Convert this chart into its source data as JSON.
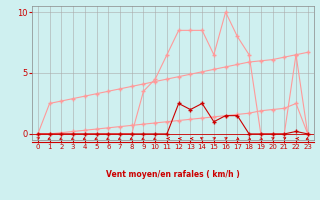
{
  "x": [
    0,
    1,
    2,
    3,
    4,
    5,
    6,
    7,
    8,
    9,
    10,
    11,
    12,
    13,
    14,
    15,
    16,
    17,
    18,
    19,
    20,
    21,
    22,
    23
  ],
  "wind_mean": [
    0,
    0,
    0,
    0,
    0,
    0,
    0,
    0,
    0,
    0,
    0,
    0,
    2.5,
    2.0,
    2.5,
    1.0,
    1.5,
    1.5,
    0,
    0,
    0,
    0,
    0.2,
    0
  ],
  "wind_gust": [
    0,
    0,
    0,
    0,
    0,
    0,
    0,
    0,
    0,
    3.5,
    4.5,
    6.5,
    8.5,
    8.5,
    8.5,
    6.5,
    10,
    8.0,
    6.5,
    0,
    0,
    0,
    6.5,
    0
  ],
  "upper_envelope": [
    0,
    2.5,
    2.7,
    2.9,
    3.1,
    3.3,
    3.5,
    3.7,
    3.9,
    4.1,
    4.3,
    4.5,
    4.7,
    4.9,
    5.1,
    5.3,
    5.5,
    5.7,
    5.9,
    6.0,
    6.1,
    6.3,
    6.5,
    6.7
  ],
  "lower_envelope": [
    0,
    0,
    0.1,
    0.2,
    0.3,
    0.4,
    0.5,
    0.6,
    0.7,
    0.8,
    0.9,
    1.0,
    1.1,
    1.2,
    1.3,
    1.4,
    1.5,
    1.6,
    1.7,
    1.9,
    2.0,
    2.1,
    2.5,
    0
  ],
  "bg_color": "#cff0f0",
  "grid_color": "#aaaaaa",
  "line_dark_red": "#cc0000",
  "line_light_red": "#ff9999",
  "xlabel": "Vent moyen/en rafales ( km/h )",
  "ylim": [
    -0.5,
    10.5
  ],
  "xlim": [
    -0.5,
    23.5
  ],
  "yticks": [
    0,
    5,
    10
  ],
  "xticks": [
    0,
    1,
    2,
    3,
    4,
    5,
    6,
    7,
    8,
    9,
    10,
    11,
    12,
    13,
    14,
    15,
    16,
    17,
    18,
    19,
    20,
    21,
    22,
    23
  ],
  "wind_directions": [
    225,
    45,
    45,
    45,
    45,
    45,
    45,
    45,
    45,
    45,
    45,
    90,
    90,
    90,
    135,
    225,
    225,
    315,
    315,
    315,
    225,
    225,
    90,
    45
  ]
}
